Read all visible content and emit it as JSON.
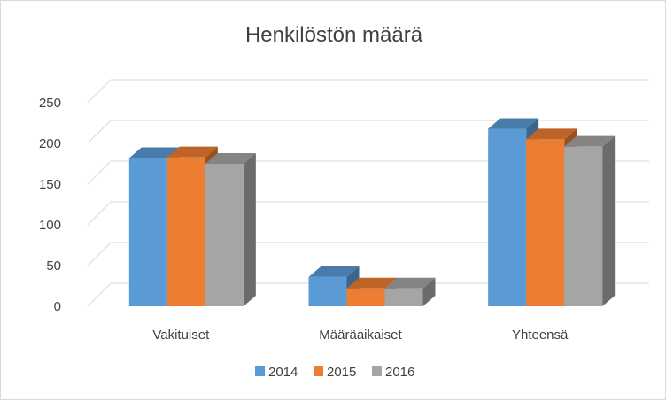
{
  "chart_data": {
    "type": "bar",
    "title": "Henkilöstön määrä",
    "categories": [
      "Vakituiset",
      "Määräaikaiset",
      "Yhteensä"
    ],
    "series": [
      {
        "name": "2014",
        "values": [
          182,
          36,
          218
        ],
        "color": "#5b9bd5"
      },
      {
        "name": "2015",
        "values": [
          183,
          22,
          205
        ],
        "color": "#ed7d31"
      },
      {
        "name": "2016",
        "values": [
          175,
          22,
          196
        ],
        "color": "#a5a5a5"
      }
    ],
    "ylim": [
      0,
      250
    ],
    "yticks": [
      0,
      50,
      100,
      150,
      200,
      250
    ],
    "grid": true,
    "legend": "bottom"
  }
}
